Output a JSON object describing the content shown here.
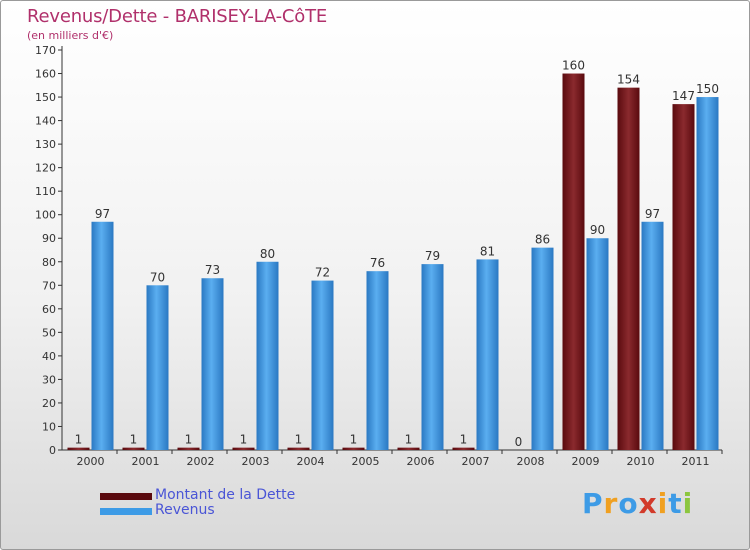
{
  "title": "Revenus/Dette - BARISEY-LA-CôTE",
  "subtitle": "(en milliers d'€)",
  "colors": {
    "title": "#b0306b",
    "legend_text": "#4a55d6",
    "dette": "#7a1218",
    "revenus": "#3d9be6"
  },
  "legend": [
    {
      "label": "Montant de la Dette",
      "color": "#5a0a0e"
    },
    {
      "label": "Revenus",
      "color": "#3d9be6"
    }
  ],
  "logo": {
    "text": "Proxiti",
    "letters": [
      "P",
      "r",
      "o",
      "x",
      "i",
      "t",
      "i"
    ],
    "letter_colors": [
      "#3d9be6",
      "#f0a020",
      "#3d9be6",
      "#d23a2a",
      "#f0a020",
      "#3d9be6",
      "#8cc63f"
    ]
  },
  "chart_data": {
    "type": "bar",
    "title": "Revenus/Dette - BARISEY-LA-CôTE",
    "ylabel": "(en milliers d'€)",
    "xlabel": "",
    "categories": [
      "2000",
      "2001",
      "2002",
      "2003",
      "2004",
      "2005",
      "2006",
      "2007",
      "2008",
      "2009",
      "2010",
      "2011"
    ],
    "series": [
      {
        "name": "Montant de la Dette",
        "values": [
          1,
          1,
          1,
          1,
          1,
          1,
          1,
          1,
          0,
          160,
          154,
          147
        ]
      },
      {
        "name": "Revenus",
        "values": [
          97,
          70,
          73,
          80,
          72,
          76,
          79,
          81,
          86,
          90,
          97,
          150
        ]
      }
    ],
    "ylim": [
      0,
      170
    ],
    "yticks": [
      0,
      10,
      20,
      30,
      40,
      50,
      60,
      70,
      80,
      90,
      100,
      110,
      120,
      130,
      140,
      150,
      160,
      170
    ],
    "grid": false,
    "legend_position": "bottom-left"
  }
}
